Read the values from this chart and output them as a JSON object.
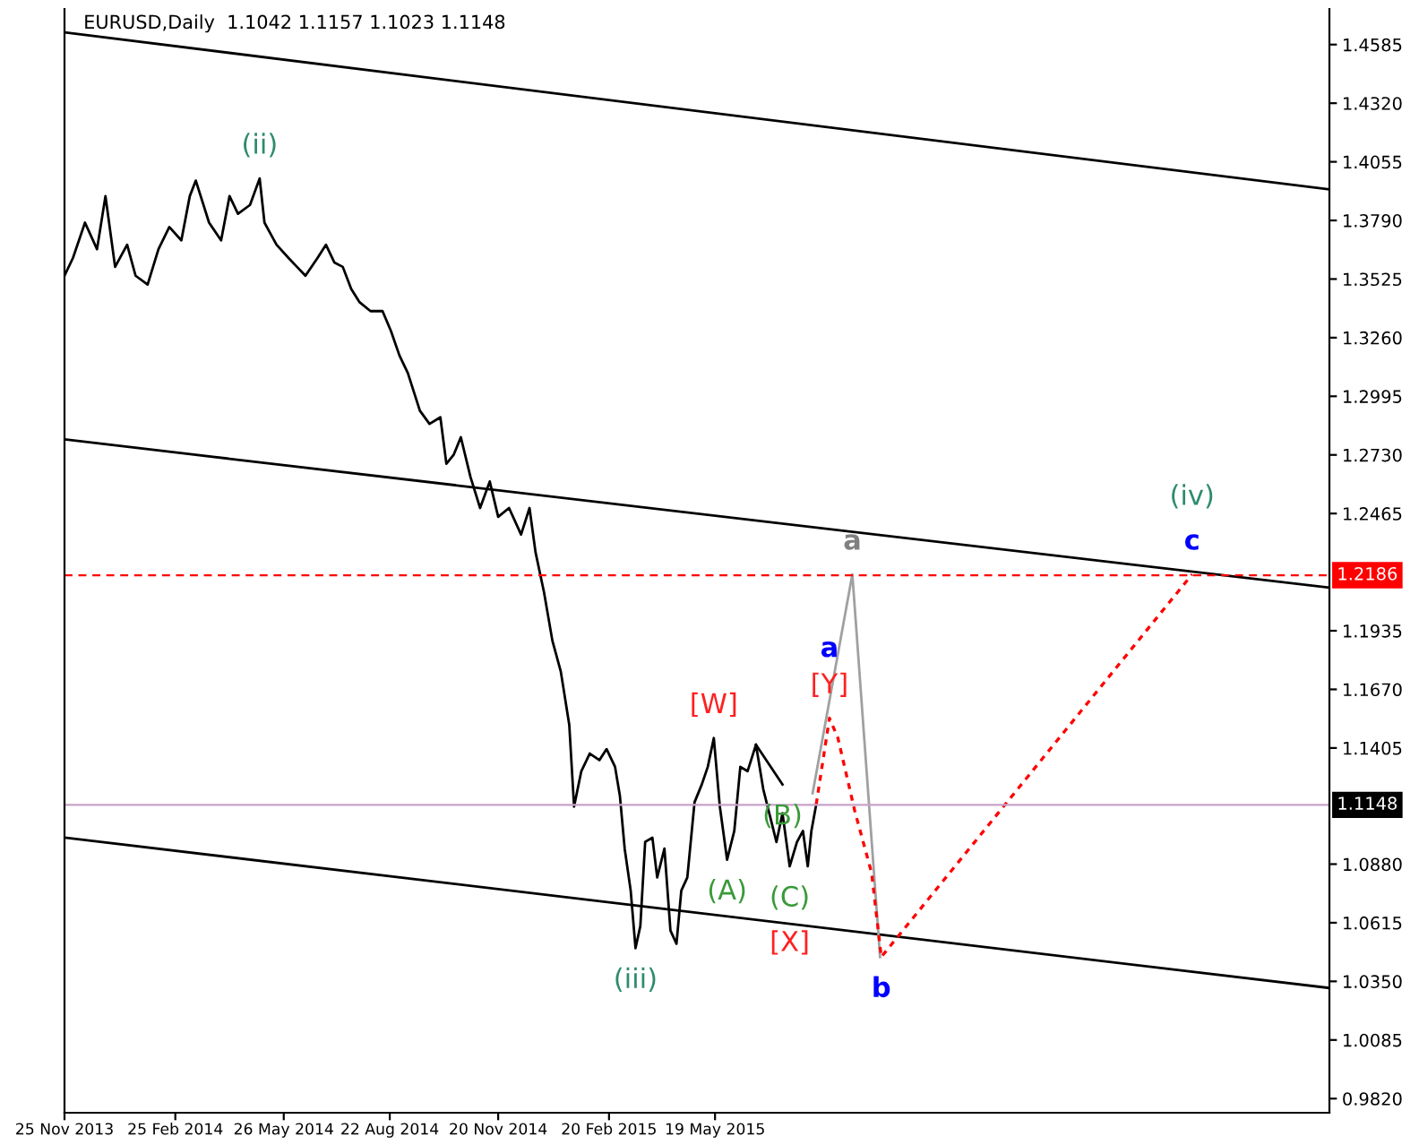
{
  "chart_data": {
    "type": "line",
    "title": "EURUSD,Daily  1.1042 1.1157 1.1023 1.1148",
    "xlim": [
      "2013-11-25",
      "2016-10-10"
    ],
    "ylim": [
      0.9756,
      1.4746
    ],
    "xticks": [
      {
        "value": "2013-11-25",
        "label": "25 Nov 2013"
      },
      {
        "value": "2014-02-25",
        "label": "25 Feb 2014"
      },
      {
        "value": "2014-05-26",
        "label": "26 May 2014"
      },
      {
        "value": "2014-08-22",
        "label": "22 Aug 2014"
      },
      {
        "value": "2014-11-20",
        "label": "20 Nov 2014"
      },
      {
        "value": "2015-02-20",
        "label": "20 Feb 2015"
      },
      {
        "value": "2015-05-19",
        "label": "19 May 2015"
      }
    ],
    "yticks": [
      {
        "value": 0.982,
        "label": "0.9820"
      },
      {
        "value": 1.0085,
        "label": "1.0085"
      },
      {
        "value": 1.035,
        "label": "1.0350"
      },
      {
        "value": 1.0615,
        "label": "1.0615"
      },
      {
        "value": 1.088,
        "label": "1.0880"
      },
      {
        "value": 1.1405,
        "label": "1.1405"
      },
      {
        "value": 1.167,
        "label": "1.1670"
      },
      {
        "value": 1.1935,
        "label": "1.1935"
      },
      {
        "value": 1.2465,
        "label": "1.2465"
      },
      {
        "value": 1.273,
        "label": "1.2730"
      },
      {
        "value": 1.2995,
        "label": "1.2995"
      },
      {
        "value": 1.326,
        "label": "1.3260"
      },
      {
        "value": 1.3525,
        "label": "1.3525"
      },
      {
        "value": 1.379,
        "label": "1.3790"
      },
      {
        "value": 1.4055,
        "label": "1.4055"
      },
      {
        "value": 1.432,
        "label": "1.4320"
      },
      {
        "value": 1.4585,
        "label": "1.4585"
      }
    ],
    "grid": false,
    "series": [
      {
        "color": "#000000",
        "x": [
          "2013-11-25",
          "2013-12-02",
          "2013-12-12",
          "2013-12-22",
          "2013-12-29",
          "2014-01-06",
          "2014-01-16",
          "2014-01-23",
          "2014-02-02",
          "2014-02-11",
          "2014-02-20",
          "2014-03-02",
          "2014-03-09",
          "2014-03-14",
          "2014-03-25",
          "2014-04-04",
          "2014-04-11",
          "2014-04-18",
          "2014-04-28",
          "2014-05-06",
          "2014-05-10",
          "2014-05-20",
          "2014-05-30",
          "2014-06-06",
          "2014-06-13",
          "2014-06-23",
          "2014-06-30",
          "2014-07-07",
          "2014-07-14",
          "2014-07-21",
          "2014-07-28",
          "2014-08-06",
          "2014-08-16",
          "2014-08-23",
          "2014-08-30",
          "2014-09-06",
          "2014-09-16",
          "2014-09-24",
          "2014-10-03",
          "2014-10-08",
          "2014-10-14",
          "2014-10-20",
          "2014-10-28",
          "2014-11-05",
          "2014-11-13",
          "2014-11-20",
          "2014-11-29",
          "2014-12-09",
          "2014-12-16",
          "2014-12-21",
          "2014-12-28",
          "2015-01-04",
          "2015-01-11",
          "2015-01-18",
          "2015-01-22",
          "2015-01-28",
          "2015-02-04",
          "2015-02-12",
          "2015-02-18",
          "2015-02-25",
          "2015-03-01",
          "2015-03-05",
          "2015-03-10",
          "2015-03-14",
          "2015-03-18",
          "2015-03-22",
          "2015-03-28",
          "2015-04-01",
          "2015-04-07",
          "2015-04-12",
          "2015-04-17",
          "2015-04-21",
          "2015-04-26",
          "2015-05-02",
          "2015-05-08",
          "2015-05-13",
          "2015-05-18",
          "2015-05-23",
          "2015-05-29",
          "2015-06-04",
          "2015-06-09",
          "2015-06-15",
          "2015-06-22",
          "2015-06-28",
          "2015-07-03",
          "2015-07-09",
          "2015-07-14",
          "2015-07-20",
          "2015-07-26",
          "2015-07-31",
          "2015-08-04",
          "2015-08-07",
          "2015-08-11"
        ],
        "values": [
          1.354,
          1.362,
          1.378,
          1.366,
          1.39,
          1.358,
          1.368,
          1.354,
          1.35,
          1.366,
          1.376,
          1.37,
          1.39,
          1.397,
          1.378,
          1.37,
          1.39,
          1.382,
          1.386,
          1.398,
          1.378,
          1.368,
          1.362,
          1.358,
          1.354,
          1.362,
          1.368,
          1.36,
          1.358,
          1.348,
          1.342,
          1.338,
          1.338,
          1.329,
          1.318,
          1.31,
          1.293,
          1.287,
          1.29,
          1.269,
          1.273,
          1.281,
          1.263,
          1.249,
          1.261,
          1.245,
          1.249,
          1.237,
          1.249,
          1.229,
          1.211,
          1.189,
          1.175,
          1.151,
          1.114,
          1.13,
          1.138,
          1.135,
          1.14,
          1.132,
          1.119,
          1.095,
          1.076,
          1.05,
          1.06,
          1.098,
          1.1,
          1.082,
          1.095,
          1.058,
          1.052,
          1.076,
          1.082,
          1.116,
          1.124,
          1.132,
          1.145,
          1.114,
          1.09,
          1.103,
          1.132,
          1.13,
          1.142,
          1.122,
          1.111,
          1.098,
          1.111,
          1.087,
          1.098,
          1.103,
          1.087,
          1.103,
          1.115
        ]
      },
      {
        "color": "#000000",
        "x": [
          "2013-11-25",
          "2016-10-10"
        ],
        "values": [
          1.464,
          1.393
        ]
      },
      {
        "color": "#000000",
        "x": [
          "2013-11-25",
          "2016-10-10"
        ],
        "values": [
          1.28,
          1.213
        ]
      },
      {
        "color": "#000000",
        "x": [
          "2013-11-25",
          "2016-10-10"
        ],
        "values": [
          1.1,
          1.032
        ]
      },
      {
        "color": "#000000",
        "x": [
          "2015-06-22",
          "2015-07-14"
        ],
        "values": [
          1.142,
          1.124
        ]
      },
      {
        "color": "#a0a0a0",
        "x": [
          "2015-08-08",
          "2015-09-10",
          "2015-10-03"
        ],
        "values": [
          1.12,
          1.219,
          1.046
        ]
      },
      {
        "color": "#ff0000",
        "line_style": "dotted",
        "x": [
          "2015-08-11",
          "2015-08-22",
          "2015-08-29",
          "2015-09-12",
          "2015-09-26",
          "2015-10-04",
          "2016-06-18"
        ],
        "values": [
          1.115,
          1.154,
          1.145,
          1.112,
          1.084,
          1.046,
          1.219
        ]
      }
    ],
    "ref_lines": [
      {
        "axis": "y",
        "value": 1.2186,
        "label": "1.2186",
        "color": "#ff0000",
        "line_style": "dashed"
      },
      {
        "axis": "y",
        "value": 1.1148,
        "label": "1.1148",
        "color": "#c8a2c8",
        "line_style": "solid"
      }
    ],
    "annotations": [
      {
        "text": "(ii)",
        "x": "2014-05-06",
        "y": 1.398
      },
      {
        "text": "(iii)",
        "x": "2015-03-14",
        "y": 1.05
      },
      {
        "text": "c",
        "x": "2016-06-18",
        "y": 1.219
      },
      {
        "text": "(iv)",
        "x": "2016-06-18",
        "y": 1.219
      },
      {
        "text": "[W]",
        "x": "2015-05-18",
        "y": 1.145
      },
      {
        "text": "(C)",
        "x": "2015-07-20",
        "y": 1.087
      },
      {
        "text": "[X]",
        "x": "2015-07-20",
        "y": 1.087
      },
      {
        "text": "[Y]",
        "x": "2015-08-22",
        "y": 1.154
      },
      "a",
      {
        "text": "(A)",
        "x": "2015-05-29",
        "y": 1.09
      },
      {
        "text": "(B)",
        "x": "2015-07-14",
        "y": 1.124
      },
      {
        "text": "a",
        "x": "2015-09-10",
        "y": 1.219
      },
      {
        "text": "b",
        "x": "2015-10-04",
        "y": 1.046
      }
    ]
  }
}
